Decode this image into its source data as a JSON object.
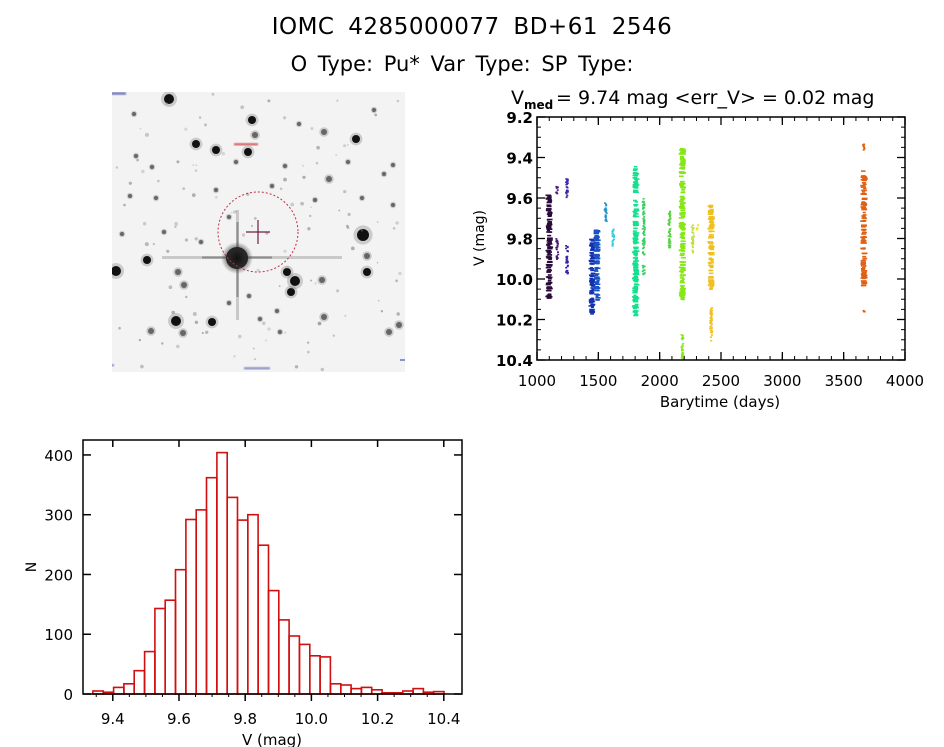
{
  "header": {
    "title_line1": "IOMC 4285000077    BD+61  2546",
    "title_line2": "O Type: Pu*  Var Type:    SP Type:"
  },
  "sky_image": {
    "description": "Grayscale star field cutout with target marked by red dotted circle and crosshair"
  },
  "chart_data": [
    {
      "type": "scatter",
      "title_prefix": "V",
      "title_subscript": "med",
      "title_rest": " = 9.74 mag <err_V> = 0.02 mag",
      "xlabel": "Barytime (days)",
      "ylabel": "V (mag)",
      "xlim": [
        1000,
        4000
      ],
      "ylim": [
        10.4,
        9.2
      ],
      "y_inverted": true,
      "xticks": [
        "1000",
        "1500",
        "2000",
        "2500",
        "3000",
        "3500",
        "4000"
      ],
      "yticks": [
        "9.2",
        "9.4",
        "9.6",
        "9.8",
        "10.0",
        "10.2",
        "10.4"
      ],
      "grid": false,
      "series": [
        {
          "x": 1100,
          "segments": [
            [
              9.58,
              10.1
            ]
          ],
          "color": "#2a0a3a"
        },
        {
          "x": 1165,
          "segments": [
            [
              9.54,
              9.58
            ],
            [
              9.79,
              9.9
            ]
          ],
          "color": "#4a1878"
        },
        {
          "x": 1245,
          "segments": [
            [
              9.5,
              9.6
            ],
            [
              9.83,
              9.97
            ]
          ],
          "color": "#3a22a8"
        },
        {
          "x": 1450,
          "segments": [
            [
              9.8,
              10.18
            ]
          ],
          "color": "#1432b0"
        },
        {
          "x": 1490,
          "segments": [
            [
              9.75,
              10.1
            ]
          ],
          "color": "#1a52c4"
        },
        {
          "x": 1560,
          "segments": [
            [
              9.62,
              9.72
            ]
          ],
          "color": "#2096d0"
        },
        {
          "x": 1620,
          "segments": [
            [
              9.75,
              9.84
            ]
          ],
          "color": "#30d0e0"
        },
        {
          "x": 1805,
          "segments": [
            [
              9.44,
              10.18
            ]
          ],
          "color": "#14e08e"
        },
        {
          "x": 1870,
          "segments": [
            [
              9.6,
              9.88
            ],
            [
              9.93,
              9.98
            ]
          ],
          "color": "#34d060"
        },
        {
          "x": 2080,
          "segments": [
            [
              9.66,
              9.85
            ]
          ],
          "color": "#54d040"
        },
        {
          "x": 2185,
          "segments": [
            [
              9.35,
              10.1
            ],
            [
              10.27,
              10.39
            ]
          ],
          "color": "#84e814"
        },
        {
          "x": 2270,
          "segments": [
            [
              9.73,
              9.87
            ]
          ],
          "color": "#c4e040"
        },
        {
          "x": 2310,
          "segments": [
            [
              9.73,
              9.76
            ]
          ],
          "color": "#f0e820"
        },
        {
          "x": 2420,
          "segments": [
            [
              9.62,
              10.05
            ],
            [
              10.13,
              10.31
            ]
          ],
          "color": "#f0c020"
        },
        {
          "x": 3665,
          "segments": [
            [
              9.33,
              9.36
            ],
            [
              9.46,
              10.03
            ],
            [
              10.15,
              10.16
            ]
          ],
          "color": "#e06014"
        }
      ]
    },
    {
      "type": "bar",
      "subtype": "histogram",
      "xlabel": "V (mag)",
      "ylabel": "N",
      "xlim": [
        9.31,
        10.455
      ],
      "ylim": [
        0,
        425
      ],
      "xticks": [
        "9.4",
        "9.6",
        "9.8",
        "10.0",
        "10.2",
        "10.4"
      ],
      "yticks": [
        "0",
        "100",
        "200",
        "300",
        "400"
      ],
      "bin_start": 9.34,
      "bin_width": 0.0312,
      "values": [
        5,
        3,
        11,
        17,
        39,
        71,
        143,
        157,
        208,
        292,
        308,
        362,
        404,
        329,
        291,
        300,
        249,
        173,
        124,
        97,
        83,
        64,
        62,
        17,
        15,
        9,
        11,
        7,
        2,
        2,
        5,
        9,
        3,
        4
      ],
      "bar_color": "#d01010",
      "grid": false
    }
  ]
}
